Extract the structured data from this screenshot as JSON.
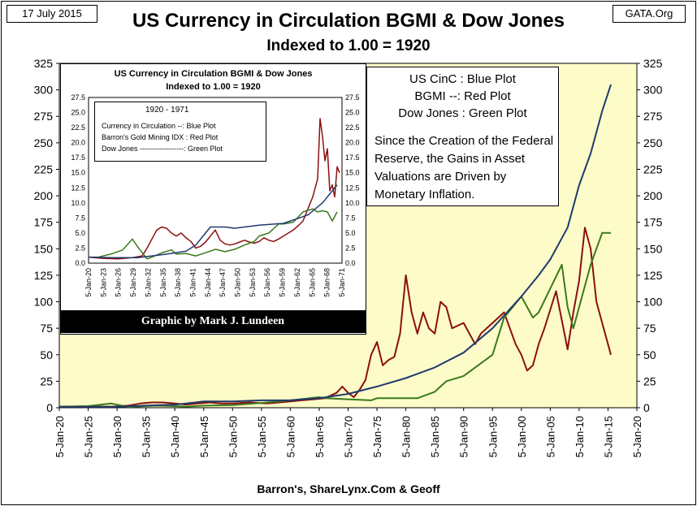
{
  "header": {
    "date": "17 July 2015",
    "site": "GATA.Org",
    "title": "US Currency in Circulation BGMI & Dow Jones",
    "subtitle": "Indexed to 1.00 = 1920"
  },
  "footer": {
    "source": "Barron's, ShareLynx.Com & Geoff"
  },
  "legend": {
    "line1": "US CinC :  Blue Plot",
    "line2": "BGMI --: Red Plot",
    "line3": "Dow Jones : Green Plot",
    "note": "Since the Creation of the Federal Reserve, the Gains in Asset Valuations are Driven by Monetary Inflation."
  },
  "inset_legend": {
    "period": "1920 - 1971",
    "line1": "Currency in Circulation --:  Blue Plot",
    "line2": "Barron's Gold Mining IDX : Red Plot",
    "line3": "Dow Jones ------------------: Green Plot"
  },
  "credit": "Graphic by Mark J. Lundeen",
  "colors": {
    "blue": "#1f3a6e",
    "red": "#8b0f0f",
    "green": "#3a7a1c",
    "plot_bg": "#fdfbc8"
  },
  "chart_data": [
    {
      "type": "line",
      "title": "US Currency in Circulation BGMI & Dow Jones",
      "subtitle": "Indexed to 1.00 = 1920",
      "ylim": [
        0,
        325
      ],
      "yticks": [
        0,
        25,
        50,
        75,
        100,
        125,
        150,
        175,
        200,
        225,
        250,
        275,
        300,
        325
      ],
      "xlim": [
        1920,
        2020
      ],
      "x_tick_labels": [
        "5-Jan-20",
        "5-Jan-25",
        "5-Jan-30",
        "5-Jan-35",
        "5-Jan-40",
        "5-Jan-45",
        "5-Jan-50",
        "5-Jan-55",
        "5-Jan-60",
        "5-Jan-65",
        "5-Jan-70",
        "5-Jan-75",
        "5-Jan-80",
        "5-Jan-85",
        "5-Jan-90",
        "5-Jan-95",
        "5-Jan-00",
        "5-Jan-05",
        "5-Jan-10",
        "5-Jan-15",
        "5-Jan-20"
      ],
      "series": [
        {
          "name": "US CinC",
          "color": "blue",
          "x": [
            1920,
            1925,
            1930,
            1935,
            1940,
            1942,
            1945,
            1950,
            1955,
            1960,
            1965,
            1970,
            1975,
            1980,
            1985,
            1990,
            1995,
            2000,
            2003,
            2005,
            2008,
            2010,
            2012,
            2014,
            2015.5
          ],
          "y": [
            1,
            1,
            1,
            2,
            3,
            4,
            6,
            6,
            7,
            7,
            9,
            13,
            20,
            28,
            38,
            52,
            75,
            105,
            125,
            140,
            170,
            210,
            240,
            280,
            305
          ]
        },
        {
          "name": "BGMI",
          "color": "red",
          "x": [
            1920,
            1925,
            1929,
            1932,
            1934,
            1936,
            1938,
            1940,
            1942,
            1944,
            1946,
            1948,
            1950,
            1953,
            1956,
            1958,
            1960,
            1962,
            1964,
            1966,
            1968,
            1969,
            1970,
            1971,
            1972,
            1973,
            1974,
            1975,
            1976,
            1977,
            1978,
            1979,
            1980,
            1981,
            1982,
            1983,
            1984,
            1985,
            1986,
            1987,
            1988,
            1990,
            1992,
            1993,
            1995,
            1997,
            1999,
            2000,
            2001,
            2002,
            2003,
            2004,
            2006,
            2008,
            2009,
            2010,
            2011,
            2012,
            2013,
            2014,
            2015.5
          ],
          "y": [
            1,
            1,
            1,
            2,
            4,
            5,
            5,
            4,
            3,
            4,
            5,
            4,
            4,
            5,
            4,
            5,
            6,
            7,
            8,
            9,
            14,
            20,
            14,
            10,
            17,
            26,
            50,
            62,
            40,
            45,
            48,
            70,
            125,
            90,
            70,
            90,
            75,
            70,
            100,
            95,
            75,
            80,
            60,
            70,
            80,
            90,
            60,
            50,
            35,
            40,
            60,
            75,
            110,
            55,
            90,
            120,
            170,
            150,
            100,
            80,
            50
          ]
        },
        {
          "name": "Dow Jones",
          "color": "green",
          "x": [
            1920,
            1925,
            1929,
            1932,
            1935,
            1937,
            1940,
            1942,
            1945,
            1950,
            1955,
            1960,
            1965,
            1966,
            1970,
            1974,
            1975,
            1980,
            1982,
            1985,
            1987,
            1990,
            1995,
            1997,
            2000,
            2002,
            2003,
            2007,
            2008,
            2009,
            2012,
            2014,
            2015.5
          ],
          "y": [
            1,
            1.5,
            4,
            0.7,
            1.6,
            2,
            1.5,
            1.1,
            2,
            2.5,
            4.5,
            7,
            10,
            9,
            8,
            7,
            9,
            9,
            9,
            15,
            25,
            30,
            50,
            85,
            105,
            85,
            90,
            135,
            95,
            75,
            135,
            165,
            165
          ]
        }
      ]
    },
    {
      "type": "line",
      "title": "US Currency in Circulation BGMI & Dow Jones",
      "subtitle": "Indexed to 1.00 = 1920",
      "period": "1920 - 1971",
      "ylim": [
        0,
        27.5
      ],
      "yticks": [
        0.0,
        2.5,
        5.0,
        7.5,
        10.0,
        12.5,
        15.0,
        17.5,
        20.0,
        22.5,
        25.0,
        27.5
      ],
      "xlim": [
        1920,
        1972
      ],
      "x_tick_labels": [
        "5-Jan-20",
        "5-Jan-23",
        "5-Jan-26",
        "5-Jan-29",
        "5-Jan-32",
        "5-Jan-35",
        "5-Jan-38",
        "5-Jan-41",
        "5-Jan-44",
        "5-Jan-47",
        "5-Jan-50",
        "5-Jan-53",
        "5-Jan-56",
        "5-Jan-59",
        "5-Jan-62",
        "5-Jan-65",
        "5-Jan-68",
        "5-Jan-71"
      ],
      "series": [
        {
          "name": "Currency in Circulation",
          "color": "blue",
          "x": [
            1920,
            1925,
            1930,
            1933,
            1936,
            1940,
            1942,
            1944,
            1945,
            1948,
            1950,
            1955,
            1960,
            1965,
            1968,
            1971
          ],
          "y": [
            1,
            0.9,
            0.9,
            1.2,
            1.5,
            2,
            3,
            5,
            6,
            6,
            5.8,
            6.3,
            6.6,
            8,
            10,
            13
          ]
        },
        {
          "name": "Barron's Gold Mining IDX",
          "color": "red",
          "x": [
            1920,
            1923,
            1926,
            1929,
            1931,
            1932,
            1933,
            1934,
            1935,
            1936,
            1937,
            1938,
            1939,
            1940,
            1941,
            1942,
            1943,
            1944,
            1945,
            1946,
            1947,
            1948,
            1949,
            1950,
            1951,
            1952,
            1953,
            1954,
            1955,
            1956,
            1957,
            1958,
            1959,
            1960,
            1961,
            1962,
            1963,
            1964,
            1965,
            1966,
            1967,
            1967.5,
            1968,
            1968.5,
            1969,
            1969.5,
            1970,
            1970.5,
            1971,
            1971.5
          ],
          "y": [
            1,
            0.8,
            0.7,
            0.9,
            1.2,
            2.5,
            4,
            5.5,
            6,
            5.8,
            5,
            4.5,
            5,
            4.2,
            3.6,
            2.5,
            2.8,
            3.5,
            4.5,
            5.5,
            3.8,
            3.2,
            3,
            3.2,
            3.5,
            3.8,
            3.5,
            3.3,
            3.6,
            4.2,
            3.8,
            3.6,
            4,
            4.5,
            5,
            5.5,
            6.2,
            7,
            9,
            11,
            14,
            24,
            21,
            17,
            19,
            12,
            13,
            11,
            16,
            15
          ]
        },
        {
          "name": "Dow Jones",
          "color": "green",
          "x": [
            1920,
            1922,
            1925,
            1927,
            1929,
            1930,
            1932,
            1933,
            1935,
            1937,
            1938,
            1940,
            1942,
            1945,
            1946,
            1948,
            1950,
            1952,
            1954,
            1955,
            1957,
            1959,
            1960,
            1962,
            1964,
            1966,
            1967,
            1968,
            1969,
            1970,
            1971
          ],
          "y": [
            1,
            1,
            1.6,
            2.2,
            4,
            2.8,
            0.7,
            1,
            1.7,
            2.2,
            1.5,
            1.6,
            1.2,
            2,
            2.3,
            1.9,
            2.3,
            3,
            3.6,
            4.5,
            5,
            6.5,
            6.5,
            6.8,
            8.5,
            9,
            8.5,
            8.7,
            8.5,
            7,
            8.5
          ]
        }
      ]
    }
  ]
}
